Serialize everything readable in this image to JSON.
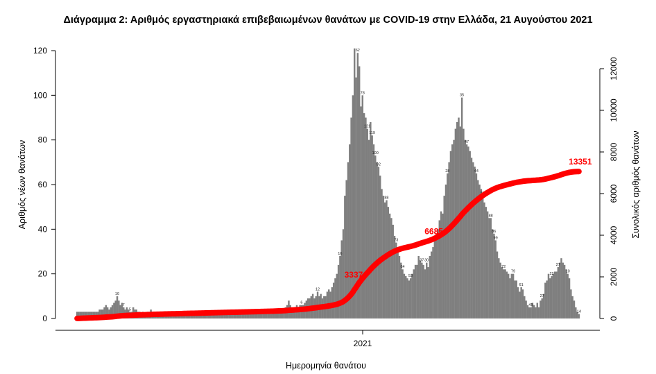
{
  "chart_data": {
    "type": "bar",
    "title": "Διάγραμμα 2: Αριθμός εργαστηριακά επιβεβαιωμένων θανάτων με COVID-19 στην Ελλάδα, 21 Αυγούστου 2021",
    "xlabel": "Ημερομηνία θανάτου",
    "ylabel": "Αριθμός νέων θανάτων",
    "ylabel_right": "Συνολικός αριθμός θανάτων",
    "x_tick_labels": [
      "2021"
    ],
    "ylim": [
      0,
      120
    ],
    "ylim_right": [
      0,
      12000
    ],
    "y_ticks": [
      0,
      20,
      40,
      60,
      80,
      100,
      120
    ],
    "y_ticks_right": [
      0,
      2000,
      4000,
      6000,
      8000,
      10000,
      12000
    ],
    "grid": false,
    "cumulative_labels": [
      {
        "index": 180,
        "value": "3337"
      },
      {
        "index": 230,
        "value": "6685"
      },
      {
        "index": 333,
        "value": "13351"
      }
    ],
    "daily_deaths": [
      3,
      3,
      3,
      3,
      3,
      3,
      3,
      3,
      3,
      3,
      3,
      3,
      3,
      3,
      4,
      4,
      4,
      5,
      6,
      5,
      4,
      5,
      6,
      7,
      8,
      10,
      8,
      6,
      7,
      5,
      4,
      5,
      4,
      3,
      3,
      5,
      4,
      4,
      3,
      3,
      2,
      3,
      2,
      2,
      3,
      3,
      4,
      3,
      3,
      3,
      2,
      2,
      2,
      2,
      2,
      3,
      2,
      2,
      2,
      2,
      2,
      2,
      2,
      2,
      2,
      2,
      3,
      2,
      2,
      2,
      2,
      2,
      2,
      2,
      2,
      2,
      2,
      2,
      2,
      2,
      2,
      2,
      2,
      2,
      2,
      2,
      2,
      2,
      2,
      2,
      2,
      2,
      2,
      2,
      2,
      2,
      2,
      2,
      2,
      2,
      2,
      2,
      2,
      2,
      2,
      2,
      2,
      2,
      2,
      2,
      2,
      2,
      2,
      2,
      2,
      2,
      2,
      2,
      2,
      2,
      2,
      2,
      3,
      4,
      4,
      3,
      3,
      3,
      3,
      4,
      5,
      6,
      8,
      6,
      5,
      5,
      5,
      6,
      5,
      6,
      6,
      6,
      7,
      8,
      9,
      9,
      10,
      11,
      9,
      10,
      12,
      10,
      11,
      9,
      10,
      10,
      12,
      13,
      12,
      14,
      16,
      18,
      20,
      24,
      28,
      35,
      40,
      55,
      62,
      70,
      78,
      90,
      100,
      121,
      108,
      119,
      113,
      95,
      100,
      92,
      90,
      85,
      80,
      88,
      82,
      78,
      73,
      70,
      68,
      64,
      58,
      55,
      52,
      53,
      50,
      47,
      45,
      42,
      37,
      34,
      30,
      28,
      25,
      22,
      20,
      19,
      18,
      17,
      18,
      20,
      22,
      24,
      24,
      28,
      26,
      25,
      24,
      22,
      25,
      23,
      28,
      30,
      32,
      35,
      38,
      40,
      44,
      48,
      47,
      55,
      60,
      65,
      70,
      75,
      78,
      80,
      85,
      88,
      90,
      86,
      99,
      85,
      80,
      78,
      77,
      75,
      72,
      70,
      68,
      65,
      62,
      60,
      58,
      55,
      52,
      50,
      48,
      45,
      45,
      40,
      38,
      35,
      30,
      27,
      25,
      23,
      22,
      22,
      21,
      20,
      18,
      20,
      20,
      17,
      17,
      14,
      12,
      14,
      13,
      10,
      8,
      6,
      5,
      5,
      7,
      6,
      5,
      7,
      5,
      8,
      9,
      11,
      16,
      17,
      20,
      18,
      19,
      20,
      21,
      21,
      23,
      25,
      27,
      25,
      24,
      22,
      20,
      18,
      13,
      10,
      8,
      5,
      3,
      2
    ],
    "bar_labels": [
      {
        "index": 25,
        "value": "10"
      },
      {
        "index": 29,
        "value": "7"
      },
      {
        "index": 33,
        "value": "5"
      },
      {
        "index": 140,
        "value": "6"
      },
      {
        "index": 150,
        "value": "12"
      },
      {
        "index": 164,
        "value": "16"
      },
      {
        "index": 175,
        "value": "62"
      },
      {
        "index": 178,
        "value": "78"
      },
      {
        "index": 181,
        "value": "121"
      },
      {
        "index": 184,
        "value": "119"
      },
      {
        "index": 186,
        "value": "100"
      },
      {
        "index": 188,
        "value": "92"
      },
      {
        "index": 193,
        "value": "88"
      },
      {
        "index": 199,
        "value": "73"
      },
      {
        "index": 203,
        "value": "64"
      },
      {
        "index": 208,
        "value": "53"
      },
      {
        "index": 215,
        "value": "37"
      },
      {
        "index": 218,
        "value": "30"
      },
      {
        "index": 223,
        "value": "18"
      },
      {
        "index": 231,
        "value": "28"
      },
      {
        "index": 240,
        "value": "35"
      },
      {
        "index": 243,
        "value": "47"
      },
      {
        "index": 249,
        "value": "44"
      },
      {
        "index": 253,
        "value": "55"
      },
      {
        "index": 258,
        "value": "88"
      },
      {
        "index": 260,
        "value": "86"
      },
      {
        "index": 261,
        "value": "99"
      },
      {
        "index": 266,
        "value": "72"
      },
      {
        "index": 272,
        "value": "79"
      },
      {
        "index": 277,
        "value": "61"
      },
      {
        "index": 283,
        "value": "45"
      },
      {
        "index": 290,
        "value": "27"
      },
      {
        "index": 296,
        "value": "22"
      },
      {
        "index": 300,
        "value": "27"
      },
      {
        "index": 306,
        "value": "10"
      },
      {
        "index": 313,
        "value": "14"
      },
      {
        "index": 319,
        "value": "21"
      },
      {
        "index": 326,
        "value": "25"
      },
      {
        "index": 328,
        "value": "27"
      },
      {
        "index": 331,
        "value": "13"
      }
    ]
  }
}
